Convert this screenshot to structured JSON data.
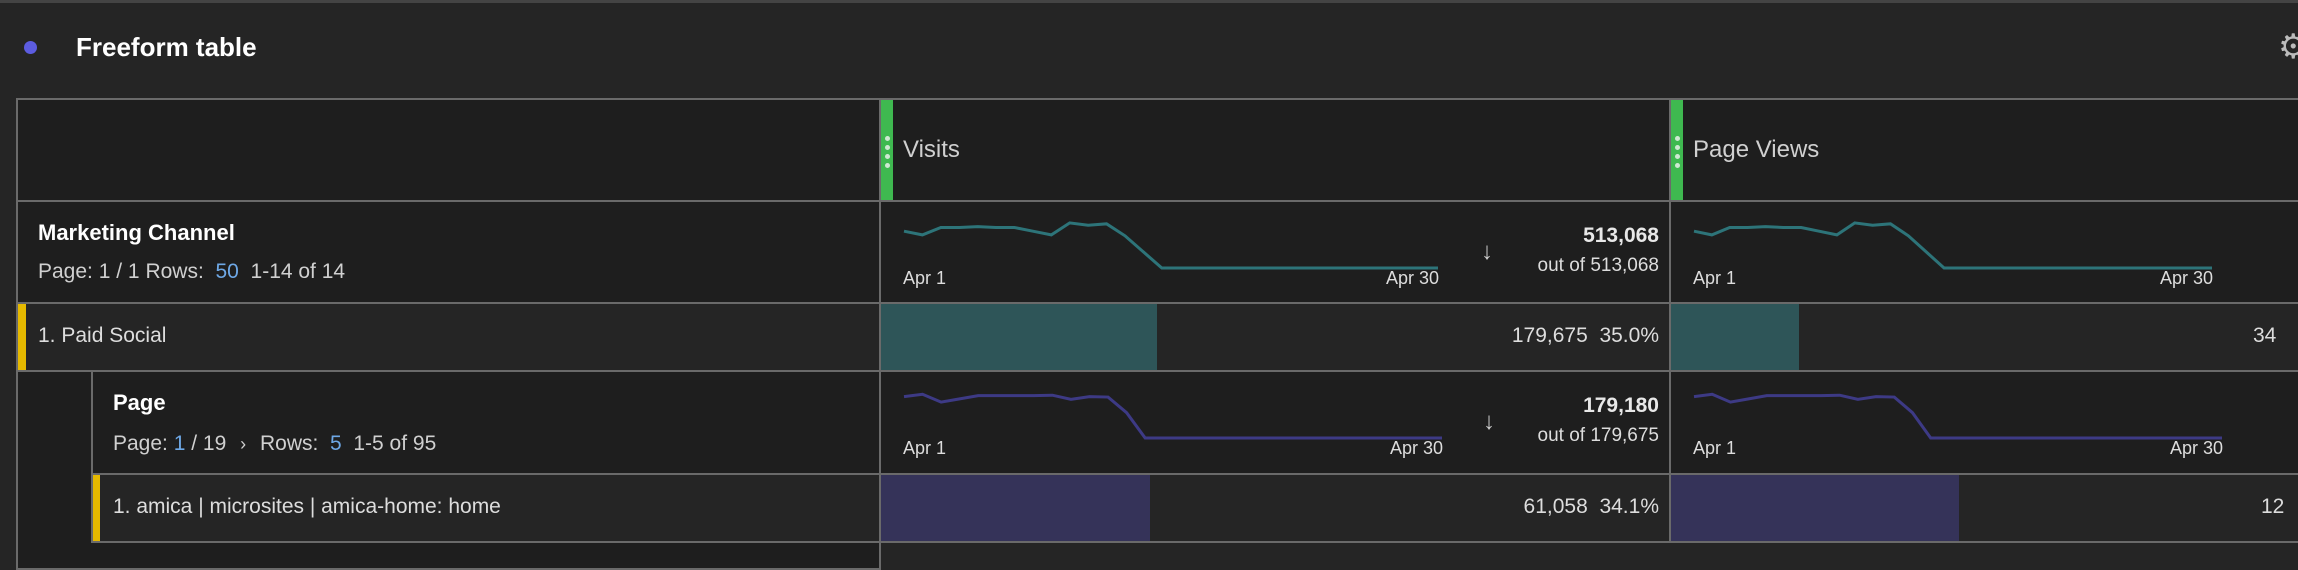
{
  "panel": {
    "title": "Freeform table",
    "dot_color": "#5c5ce0",
    "settings_icon": "gear-icon"
  },
  "columns": [
    {
      "label": "Visits",
      "grip_color": "#3fb950"
    },
    {
      "label": "Page Views",
      "grip_color": "#3fb950"
    }
  ],
  "dimension1": {
    "title": "Marketing Channel",
    "page_label": "Page:",
    "page": "1 / 1",
    "rows_label": "Rows:",
    "rows": "50",
    "range": "1-14 of 14",
    "visits_total": "513,068",
    "visits_out_of": "out of 513,068",
    "spark_start": "Apr 1",
    "spark_end": "Apr 30",
    "sparkline_color": "#2d7479",
    "sparkline": [
      0.8,
      0.72,
      0.88,
      0.88,
      0.9,
      0.88,
      0.88,
      0.8,
      0.72,
      0.98,
      0.93,
      0.96,
      0.7,
      0.35,
      0,
      0,
      0,
      0,
      0,
      0,
      0,
      0,
      0,
      0,
      0,
      0,
      0,
      0,
      0,
      0
    ]
  },
  "row1": {
    "label": "1.  Paid Social",
    "visits": "179,675",
    "visits_pct": "35.0%",
    "visits_fraction": 0.35,
    "pageviews_pct": "34",
    "pageviews_fraction": 0.2,
    "bar_color": "#2e5558"
  },
  "dimension2": {
    "title": "Page",
    "page_label": "Page:",
    "page_current": "1",
    "page_total": "/ 19",
    "rows_label": "Rows:",
    "rows": "5",
    "range": "1-5 of 95",
    "visits_total": "179,180",
    "visits_out_of": "out of 179,675",
    "spark_start": "Apr 1",
    "spark_end": "Apr 30",
    "sparkline_color": "#3d3a85",
    "sparkline": [
      0.9,
      0.95,
      0.78,
      0.85,
      0.92,
      0.92,
      0.92,
      0.92,
      0.93,
      0.84,
      0.9,
      0.89,
      0.55,
      0,
      0,
      0,
      0,
      0,
      0,
      0,
      0,
      0,
      0,
      0,
      0,
      0,
      0,
      0,
      0,
      0
    ]
  },
  "row2": {
    "label": "1.  amica | microsites | amica-home: home",
    "visits": "61,058",
    "visits_pct": "34.1%",
    "visits_fraction": 0.341,
    "pageviews_pct": "12",
    "pageviews_fraction": 0.45,
    "bar_color": "#353359"
  }
}
